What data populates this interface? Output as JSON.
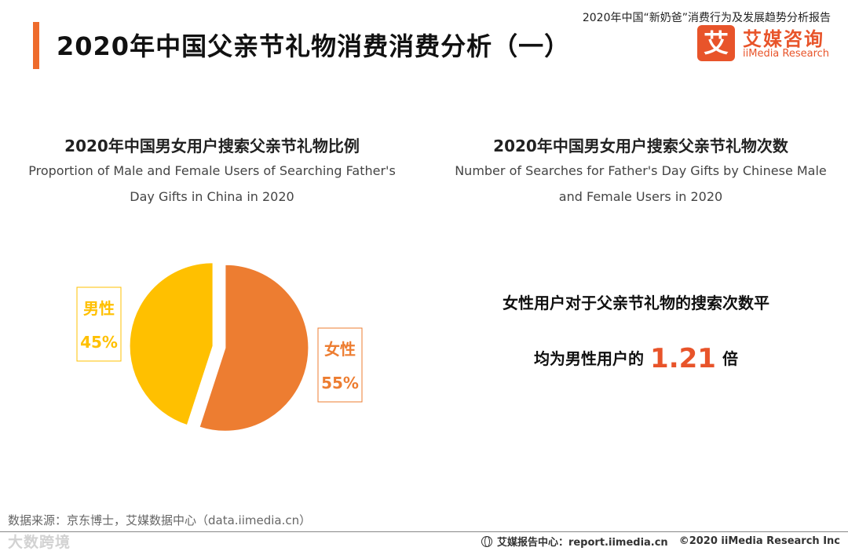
{
  "header": {
    "report_title": "2020年中国“新奶爸”消费行为及发展趋势分析报告",
    "page_title": "2020年中国父亲节礼物消费消费分析（一）"
  },
  "logo": {
    "mark": "艾",
    "name_cn": "艾媒咨询",
    "name_en": "iiMedia Research"
  },
  "left_panel": {
    "title_cn": "2020年中国男女用户搜索父亲节礼物比例",
    "subtitle_en_line1": "Proportion of Male and Female Users of Searching Father's",
    "subtitle_en_line2": "Day Gifts in China in 2020"
  },
  "right_panel": {
    "title_cn": "2020年中国男女用户搜索父亲节礼物次数",
    "subtitle_en_line1": "Number of Searches for Father's Day Gifts by Chinese Male",
    "subtitle_en_line2": "and Female Users in 2020",
    "stat_line1": "女性用户对于父亲节礼物的搜索次数平",
    "stat_prefix": "均为男性用户的",
    "stat_value": "1.21",
    "stat_suffix": "倍"
  },
  "chart_data": {
    "type": "pie",
    "title": "2020年中国男女用户搜索父亲节礼物比例",
    "slices": [
      {
        "label": "女性",
        "value": 55,
        "value_label": "55%",
        "color": "#ed7d31"
      },
      {
        "label": "男性",
        "value": 45,
        "value_label": "45%",
        "color": "#ffc000"
      }
    ]
  },
  "footer": {
    "source": "数据来源：京东博士，艾媒数据中心（data.iimedia.cn）",
    "report_center": "艾媒报告中心：report.iimedia.cn",
    "copyright": "©2020  iiMedia Research  Inc",
    "watermark": "大数跨境"
  },
  "colors": {
    "accent": "#ee6b2c",
    "brand": "#e8542a"
  }
}
